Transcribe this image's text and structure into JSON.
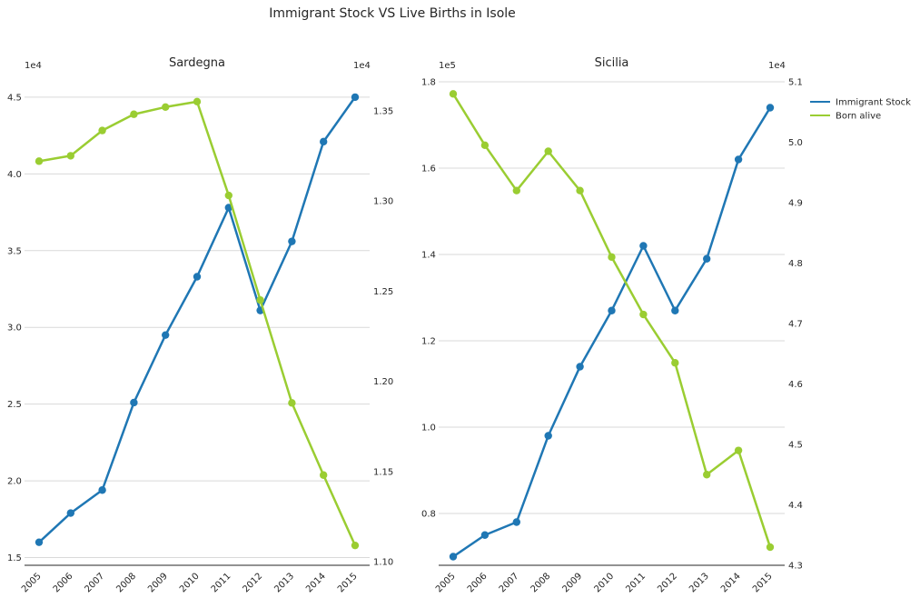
{
  "figure": {
    "title": "Immigrant Stock VS Live Births in Isole",
    "colors": {
      "immigrant": "#1f77b4",
      "births": "#9acd32",
      "grid": "#d9d9d9",
      "text": "#262626"
    }
  },
  "legend": {
    "placement": "outside-top-right",
    "items": [
      "Immigrant Stock",
      "Born alive"
    ]
  },
  "chart_data": [
    {
      "type": "line",
      "title": "Sardegna",
      "categories": [
        "2005",
        "2006",
        "2007",
        "2008",
        "2009",
        "2010",
        "2011",
        "2012",
        "2013",
        "2014",
        "2015"
      ],
      "left_axis": {
        "series": "Immigrant Stock",
        "offset_label": "1e4",
        "ylim": [
          1.45,
          4.6
        ],
        "ticks": [
          1.5,
          2.0,
          2.5,
          3.0,
          3.5,
          4.0,
          4.5
        ],
        "tick_labels": [
          "1.5",
          "2.0",
          "2.5",
          "3.0",
          "3.5",
          "4.0",
          "4.5"
        ],
        "grid": true
      },
      "right_axis": {
        "series": "Born alive",
        "offset_label": "1e4",
        "ylim": [
          1.098,
          1.366
        ],
        "ticks": [
          1.1,
          1.15,
          1.2,
          1.25,
          1.3,
          1.35
        ],
        "tick_labels": [
          "1.10",
          "1.15",
          "1.20",
          "1.25",
          "1.30",
          "1.35"
        ]
      },
      "series": [
        {
          "name": "Immigrant Stock",
          "axis": "left",
          "color": "#1f77b4",
          "values": [
            1.6,
            1.79,
            1.94,
            2.51,
            2.95,
            3.33,
            3.78,
            3.11,
            3.56,
            4.21,
            4.5
          ]
        },
        {
          "name": "Born alive",
          "axis": "right",
          "color": "#9acd32",
          "values": [
            1.322,
            1.325,
            1.339,
            1.348,
            1.352,
            1.355,
            1.303,
            1.245,
            1.188,
            1.148,
            1.109
          ]
        }
      ]
    },
    {
      "type": "line",
      "title": "Sicilia",
      "categories": [
        "2005",
        "2006",
        "2007",
        "2008",
        "2009",
        "2010",
        "2011",
        "2012",
        "2013",
        "2014",
        "2015"
      ],
      "left_axis": {
        "series": "Immigrant Stock",
        "offset_label": "1e5",
        "ylim": [
          0.68,
          1.8
        ],
        "ticks": [
          0.8,
          1.0,
          1.2,
          1.4,
          1.6,
          1.8
        ],
        "tick_labels": [
          "0.8",
          "1.0",
          "1.2",
          "1.4",
          "1.6",
          "1.8"
        ],
        "grid": true
      },
      "right_axis": {
        "series": "Born alive",
        "offset_label": "1e4",
        "ylim": [
          4.3,
          5.1
        ],
        "ticks": [
          4.3,
          4.4,
          4.5,
          4.6,
          4.7,
          4.8,
          4.9,
          5.0,
          5.1
        ],
        "tick_labels": [
          "4.3",
          "4.4",
          "4.5",
          "4.6",
          "4.7",
          "4.8",
          "4.9",
          "5.0",
          "5.1"
        ]
      },
      "series": [
        {
          "name": "Immigrant Stock",
          "axis": "left",
          "color": "#1f77b4",
          "values": [
            0.7,
            0.75,
            0.78,
            0.98,
            1.14,
            1.27,
            1.42,
            1.27,
            1.39,
            1.62,
            1.74
          ]
        },
        {
          "name": "Born alive",
          "axis": "right",
          "color": "#9acd32",
          "values": [
            5.08,
            4.995,
            4.92,
            4.985,
            4.92,
            4.81,
            4.715,
            4.635,
            4.45,
            4.49,
            4.33
          ]
        }
      ]
    }
  ]
}
